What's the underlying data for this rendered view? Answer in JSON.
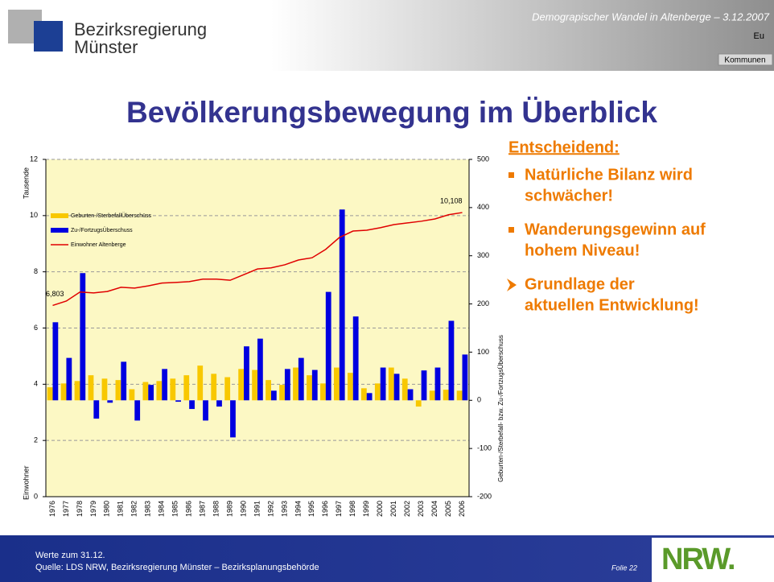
{
  "header": {
    "org_line1": "Bezirksregierung",
    "org_line2": "Münster",
    "topic": "Demograpischer Wandel in Altenberge  – 3.12.2007",
    "tab1": "Eu",
    "tab2": "Kommunen"
  },
  "slide_title": "Bevölkerungsbewegung im Überblick",
  "side": {
    "heading": "Entscheidend:",
    "bullets": [
      [
        "Natürliche Bilanz wird",
        "schwächer!"
      ],
      [
        "Wanderungsgewinn auf",
        "hohem Niveau!"
      ],
      [
        "Grundlage der",
        "aktuellen Entwicklung!"
      ]
    ]
  },
  "footer": {
    "line1": "Werte zum 31.12.",
    "line2": "Quelle: LDS NRW, Bezirksregierung Münster – Bezirksplanungsbehörde",
    "slide_no": "Folie 22",
    "logo": "NRW."
  },
  "chart_data": {
    "type": "bar_line",
    "y_title": "Tausende",
    "y_title2": "Einwohner",
    "y2_title": "Geburten-/Sterbefall- bzw. Zu-/FortzugsÜberschuss",
    "categories": [
      "1976",
      "1977",
      "1978",
      "1979",
      "1980",
      "1981",
      "1982",
      "1983",
      "1984",
      "1985",
      "1986",
      "1987",
      "1988",
      "1989",
      "1990",
      "1991",
      "1992",
      "1993",
      "1994",
      "1995",
      "1996",
      "1997",
      "1998",
      "1999",
      "2000",
      "2001",
      "2002",
      "2003",
      "2004",
      "2005",
      "2006"
    ],
    "ylim": [
      0,
      12
    ],
    "yticks": [
      0,
      2,
      4,
      6,
      8,
      10,
      12
    ],
    "y2lim": [
      -200,
      500
    ],
    "y2ticks": [
      -200,
      -100,
      0,
      100,
      200,
      300,
      400,
      500
    ],
    "grid": true,
    "series": [
      {
        "name": "Geburten-/SterbefallÜberschüss",
        "color": "#f8c800",
        "axis": "y2",
        "kind": "bar",
        "values": [
          27,
          35,
          40,
          52,
          45,
          42,
          23,
          38,
          40,
          45,
          52,
          72,
          55,
          48,
          65,
          63,
          42,
          32,
          68,
          52,
          35,
          68,
          57,
          25,
          35,
          68,
          45,
          -13,
          20,
          22,
          20
        ]
      },
      {
        "name": "Zu-/FortzugsÜberschuss",
        "color": "#0000e0",
        "axis": "y2",
        "kind": "bar",
        "values": [
          162,
          88,
          264,
          -38,
          -5,
          80,
          -42,
          32,
          65,
          -3,
          -18,
          -42,
          -13,
          -77,
          112,
          128,
          20,
          65,
          88,
          63,
          225,
          396,
          174,
          15,
          68,
          55,
          23,
          62,
          68,
          165,
          95
        ]
      },
      {
        "name": "Einwohner Altenberge",
        "color": "#e00000",
        "kind": "line",
        "values": [
          6.803,
          6.96,
          7.28,
          7.25,
          7.3,
          7.45,
          7.42,
          7.5,
          7.6,
          7.62,
          7.65,
          7.74,
          7.74,
          7.7,
          7.9,
          8.1,
          8.14,
          8.25,
          8.42,
          8.5,
          8.8,
          9.22,
          9.45,
          9.48,
          9.57,
          9.68,
          9.74,
          9.8,
          9.88,
          10.03,
          10.108
        ],
        "value_labels": [
          "6,803",
          null,
          null,
          null,
          null,
          null,
          null,
          null,
          null,
          null,
          null,
          null,
          null,
          null,
          null,
          null,
          null,
          null,
          null,
          null,
          null,
          null,
          null,
          null,
          null,
          null,
          null,
          null,
          null,
          null,
          "10,108"
        ]
      }
    ]
  }
}
